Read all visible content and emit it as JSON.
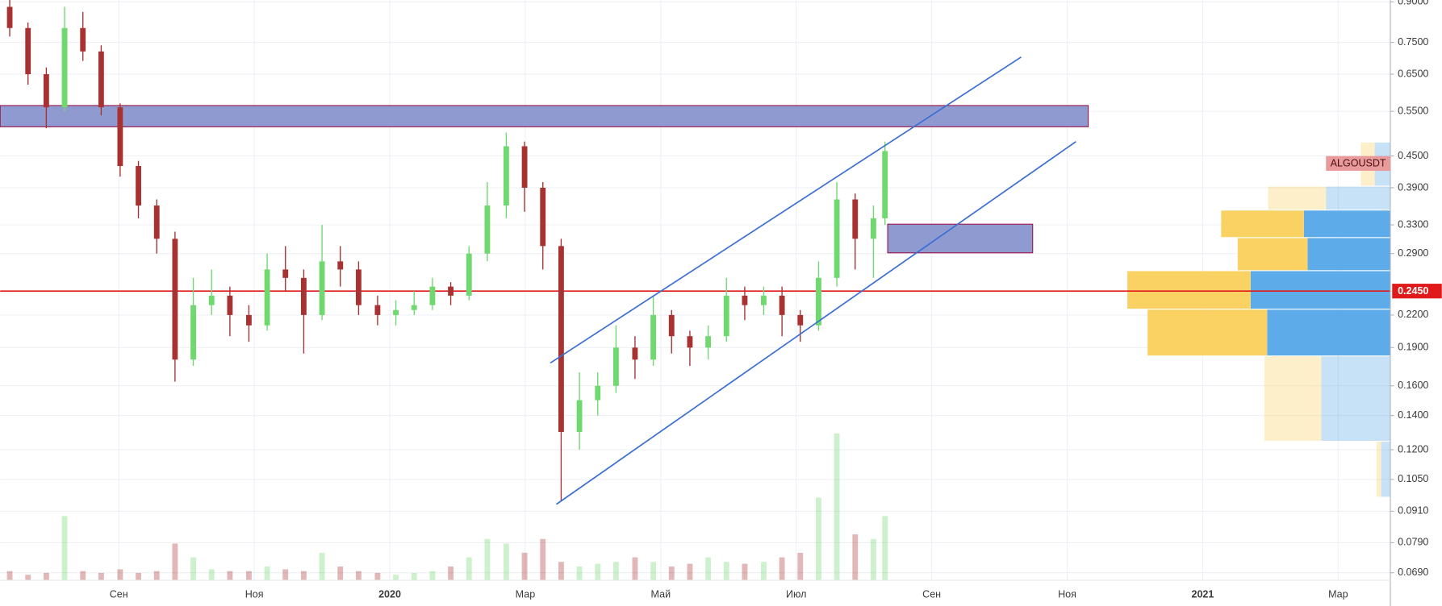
{
  "chart_data": {
    "type": "candlestick",
    "symbol": "ALGOUSDT",
    "log_scale": true,
    "grid": true,
    "up_color": "#6fd86f",
    "down_color": "#a83232",
    "x": [
      7.39,
      7.66,
      7.93,
      8.2,
      8.47,
      8.74,
      9.02,
      9.29,
      9.56,
      9.83,
      10.1,
      10.37,
      10.64,
      10.92,
      11.19,
      11.46,
      11.73,
      12.0,
      12.27,
      12.54,
      12.82,
      13.09,
      13.36,
      13.63,
      13.9,
      14.17,
      14.44,
      14.72,
      14.99,
      15.26,
      15.53,
      15.8,
      16.07,
      16.34,
      16.62,
      16.89,
      17.16,
      17.43,
      17.7,
      17.97,
      18.24,
      18.52,
      18.79,
      19.06,
      19.33,
      19.6,
      19.87,
      20.14,
      20.31
    ],
    "open": [
      0.88,
      0.8,
      0.65,
      0.56,
      0.8,
      0.72,
      0.56,
      0.43,
      0.36,
      0.31,
      0.18,
      0.23,
      0.24,
      0.22,
      0.21,
      0.27,
      0.26,
      0.22,
      0.28,
      0.27,
      0.23,
      0.22,
      0.225,
      0.23,
      0.25,
      0.24,
      0.29,
      0.36,
      0.47,
      0.39,
      0.3,
      0.13,
      0.15,
      0.16,
      0.19,
      0.18,
      0.22,
      0.2,
      0.19,
      0.2,
      0.24,
      0.23,
      0.24,
      0.22,
      0.21,
      0.26,
      0.37,
      0.31,
      0.34
    ],
    "high": [
      0.91,
      0.82,
      0.67,
      0.88,
      0.86,
      0.74,
      0.57,
      0.44,
      0.37,
      0.32,
      0.26,
      0.27,
      0.25,
      0.23,
      0.29,
      0.3,
      0.27,
      0.33,
      0.3,
      0.28,
      0.24,
      0.235,
      0.245,
      0.26,
      0.255,
      0.3,
      0.4,
      0.5,
      0.48,
      0.4,
      0.31,
      0.17,
      0.17,
      0.21,
      0.2,
      0.24,
      0.225,
      0.205,
      0.21,
      0.26,
      0.25,
      0.25,
      0.25,
      0.225,
      0.28,
      0.4,
      0.38,
      0.36,
      0.48
    ],
    "low": [
      0.77,
      0.62,
      0.51,
      0.55,
      0.69,
      0.54,
      0.41,
      0.34,
      0.29,
      0.163,
      0.175,
      0.22,
      0.2,
      0.195,
      0.205,
      0.245,
      0.185,
      0.215,
      0.25,
      0.22,
      0.21,
      0.21,
      0.22,
      0.225,
      0.23,
      0.235,
      0.28,
      0.34,
      0.35,
      0.27,
      0.095,
      0.12,
      0.14,
      0.155,
      0.165,
      0.175,
      0.185,
      0.175,
      0.18,
      0.195,
      0.215,
      0.22,
      0.2,
      0.195,
      0.205,
      0.25,
      0.27,
      0.26,
      0.33
    ],
    "close": [
      0.8,
      0.65,
      0.56,
      0.8,
      0.72,
      0.56,
      0.43,
      0.36,
      0.31,
      0.18,
      0.23,
      0.24,
      0.22,
      0.21,
      0.27,
      0.26,
      0.22,
      0.28,
      0.27,
      0.23,
      0.22,
      0.225,
      0.23,
      0.25,
      0.24,
      0.29,
      0.36,
      0.47,
      0.39,
      0.3,
      0.13,
      0.15,
      0.16,
      0.19,
      0.18,
      0.22,
      0.2,
      0.19,
      0.2,
      0.24,
      0.23,
      0.24,
      0.22,
      0.21,
      0.26,
      0.37,
      0.31,
      0.34,
      0.46
    ],
    "volume": [
      10,
      6,
      8,
      70,
      10,
      8,
      12,
      8,
      10,
      40,
      25,
      12,
      10,
      10,
      15,
      12,
      10,
      30,
      15,
      10,
      8,
      6,
      8,
      10,
      15,
      25,
      45,
      40,
      30,
      45,
      20,
      15,
      18,
      20,
      25,
      20,
      15,
      18,
      25,
      20,
      18,
      20,
      25,
      30,
      90,
      160,
      50,
      45,
      70
    ],
    "xlim": [
      7.249,
      27.77
    ],
    "xticks": [
      {
        "value": 9,
        "label": "Сен"
      },
      {
        "value": 11,
        "label": "Ноя"
      },
      {
        "value": 13,
        "label": "2020"
      },
      {
        "value": 15,
        "label": "Мар"
      },
      {
        "value": 17,
        "label": "Май"
      },
      {
        "value": 19,
        "label": "Июл"
      },
      {
        "value": 21,
        "label": "Сен"
      },
      {
        "value": 23,
        "label": "Ноя"
      },
      {
        "value": 25,
        "label": "2021"
      },
      {
        "value": 27,
        "label": "Мар"
      }
    ],
    "ylim": [
      0.0667,
      0.9075
    ],
    "yticks": [
      {
        "value": 0.9,
        "label": "0.9000"
      },
      {
        "value": 0.75,
        "label": "0.7500"
      },
      {
        "value": 0.65,
        "label": "0.6500"
      },
      {
        "value": 0.55,
        "label": "0.5500"
      },
      {
        "value": 0.45,
        "label": "0.4500"
      },
      {
        "value": 0.39,
        "label": "0.3900"
      },
      {
        "value": 0.33,
        "label": "0.3300"
      },
      {
        "value": 0.29,
        "label": "0.2900"
      },
      {
        "value": 0.22,
        "label": "0.2200"
      },
      {
        "value": 0.19,
        "label": "0.1900"
      },
      {
        "value": 0.16,
        "label": "0.1600"
      },
      {
        "value": 0.14,
        "label": "0.1400"
      },
      {
        "value": 0.12,
        "label": "0.1200"
      },
      {
        "value": 0.105,
        "label": "0.1050"
      },
      {
        "value": 0.091,
        "label": "0.0910"
      },
      {
        "value": 0.079,
        "label": "0.0790"
      },
      {
        "value": 0.069,
        "label": "0.0690"
      }
    ],
    "price_line": {
      "value": 0.245,
      "label": "0.2450",
      "color": "#e0191a"
    },
    "zones": [
      {
        "x": [
          7.249,
          23.31
        ],
        "y": [
          0.513,
          0.5645
        ],
        "color": "#8f9bd0",
        "border": "#9b1b4a"
      },
      {
        "x": [
          20.35,
          22.49
        ],
        "y": [
          0.291,
          0.331
        ],
        "color": "#8f9bd0",
        "border": "#9b1b4a"
      }
    ],
    "trend_lines": [
      {
        "x": [
          15.37,
          22.32
        ],
        "y": [
          0.1773,
          0.702
        ],
        "color": "#3b6fd4"
      },
      {
        "x": [
          15.46,
          23.13
        ],
        "y": [
          0.0939,
          0.48
        ],
        "color": "#3b6fd4"
      }
    ],
    "volume_profile": {
      "buy_color": "#f9d263",
      "sell_color": "#5eabe9",
      "value_area": [
        0.1826,
        0.352
      ],
      "rows": [
        {
          "low": 0.392,
          "high": 0.478,
          "buy": 15,
          "sell": 17
        },
        {
          "low": 0.352,
          "high": 0.392,
          "buy": 63,
          "sell": 70
        },
        {
          "low": 0.311,
          "high": 0.352,
          "buy": 90,
          "sell": 94
        },
        {
          "low": 0.268,
          "high": 0.311,
          "buy": 76,
          "sell": 90
        },
        {
          "low": 0.2254,
          "high": 0.268,
          "buy": 134,
          "sell": 152
        },
        {
          "low": 0.1826,
          "high": 0.2254,
          "buy": 130,
          "sell": 134
        },
        {
          "low": 0.1244,
          "high": 0.1826,
          "buy": 62,
          "sell": 75
        },
        {
          "low": 0.0967,
          "high": 0.1244,
          "buy": 5,
          "sell": 10
        }
      ]
    }
  }
}
